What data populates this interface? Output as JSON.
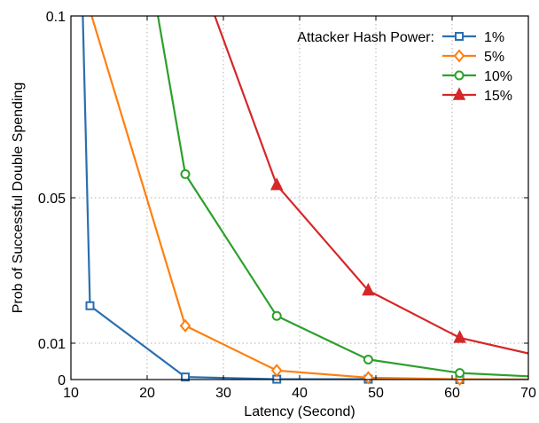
{
  "chart_data": {
    "type": "line",
    "xlabel": "Latency (Second)",
    "ylabel": "Prob of Successful Double Spending",
    "xlim": [
      10,
      70
    ],
    "ylim": [
      0,
      0.1
    ],
    "x_ticks": [
      10,
      20,
      30,
      40,
      50,
      60,
      70
    ],
    "x_tick_labels": [
      "10",
      "20",
      "30",
      "40",
      "50",
      "60",
      "70"
    ],
    "y_ticks": [
      0,
      0.01,
      0.05,
      0.1
    ],
    "y_tick_labels": [
      "0",
      "0.01",
      "0.05",
      "0.1"
    ],
    "grid": true,
    "legend": {
      "title": "Attacker Hash Power:",
      "position": "top-right"
    },
    "series": [
      {
        "name": "1%",
        "color": "#2a6fb0",
        "marker": "square",
        "points": [
          [
            11.5,
            0.105
          ],
          [
            12.5,
            0.0203
          ],
          [
            25,
            0.0007
          ],
          [
            37,
            0.0001
          ],
          [
            49,
            0.0001
          ],
          [
            61,
            0.0
          ],
          [
            70,
            0.0
          ]
        ],
        "marked": [
          false,
          true,
          true,
          true,
          true,
          true,
          false
        ]
      },
      {
        "name": "5%",
        "color": "#ff7f0e",
        "marker": "diamond",
        "points": [
          [
            12,
            0.105
          ],
          [
            25,
            0.0148
          ],
          [
            37,
            0.0025
          ],
          [
            49,
            0.0005
          ],
          [
            61,
            0.0001
          ],
          [
            70,
            0.0
          ]
        ],
        "marked": [
          false,
          true,
          true,
          true,
          true,
          false
        ]
      },
      {
        "name": "10%",
        "color": "#2ca02c",
        "marker": "circle",
        "points": [
          [
            21,
            0.105
          ],
          [
            25,
            0.0565
          ],
          [
            37,
            0.0175
          ],
          [
            49,
            0.0055
          ],
          [
            61,
            0.0018
          ],
          [
            70,
            0.0009
          ]
        ],
        "marked": [
          false,
          true,
          true,
          true,
          true,
          false
        ]
      },
      {
        "name": "15%",
        "color": "#d62728",
        "marker": "triangle",
        "points": [
          [
            28,
            0.105
          ],
          [
            37,
            0.0535
          ],
          [
            49,
            0.0245
          ],
          [
            61,
            0.0115
          ],
          [
            70,
            0.0072
          ]
        ],
        "marked": [
          false,
          true,
          true,
          true,
          false
        ]
      }
    ]
  }
}
